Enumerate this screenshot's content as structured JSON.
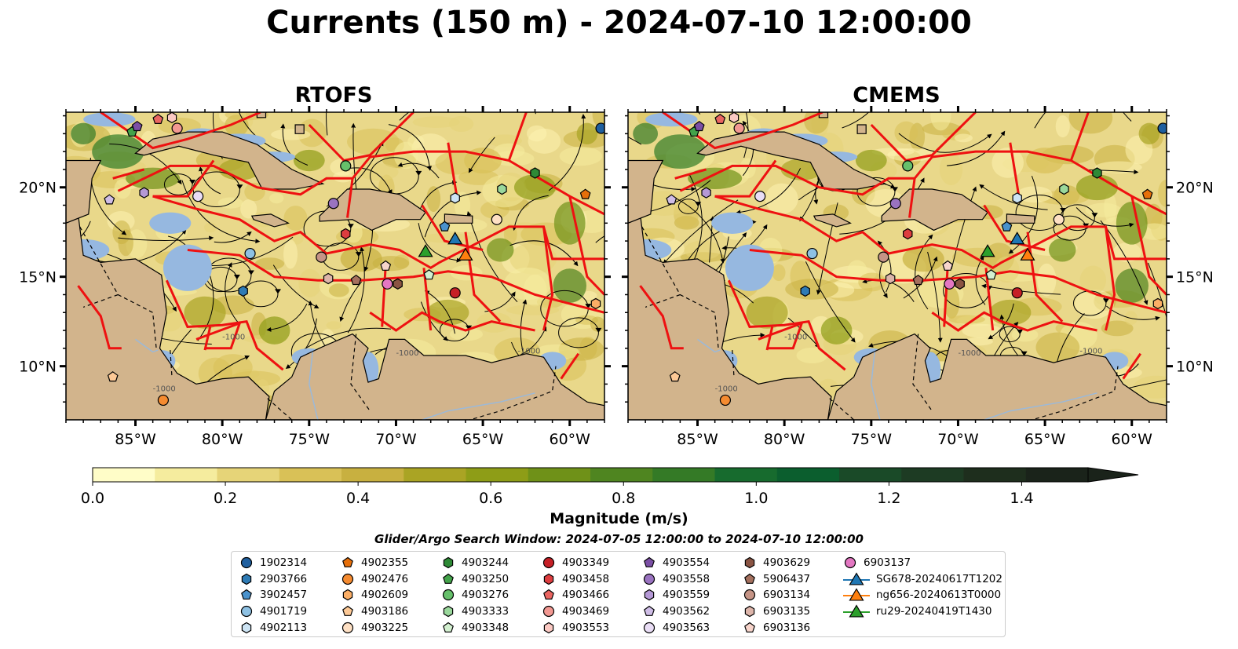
{
  "title": "Currents (150 m) - 2024-07-10 12:00:00",
  "panels": [
    {
      "title": "RTOFS"
    },
    {
      "title": "CMEMS"
    }
  ],
  "map": {
    "lon_range": [
      -89,
      -58
    ],
    "lat_range": [
      7,
      24.2
    ],
    "lon_ticks": [
      "85°W",
      "80°W",
      "75°W",
      "70°W",
      "65°W",
      "60°W"
    ],
    "lat_ticks": [
      "20°N",
      "15°N",
      "10°N"
    ],
    "contour_labels": [
      "-1000",
      "-1000",
      "-1000",
      "-1000"
    ]
  },
  "colorbar": {
    "label": "Magnitude (m/s)",
    "ticks": [
      "0.0",
      "0.2",
      "0.4",
      "0.6",
      "0.8",
      "1.0",
      "1.2",
      "1.4"
    ],
    "range": [
      0,
      1.5
    ],
    "extend": "max",
    "colors": [
      "#fffdc8",
      "#f5ec9e",
      "#e6d478",
      "#d9c157",
      "#c8b040",
      "#aaa424",
      "#8e9d17",
      "#6f9118",
      "#4f8520",
      "#347a26",
      "#176b2e",
      "#0b5e2e",
      "#1a4a28",
      "#1d3b23",
      "#1e2e1d",
      "#1a231a"
    ]
  },
  "search_window": "Glider/Argo Search Window: 2024-07-05 12:00:00 to 2024-07-10 12:00:00",
  "legend": [
    {
      "label": "1902314",
      "marker": "circle",
      "color": "#1f5f9f"
    },
    {
      "label": "2903766",
      "marker": "hexagon",
      "color": "#2e7bb5"
    },
    {
      "label": "3902457",
      "marker": "pentagon",
      "color": "#4a92cc"
    },
    {
      "label": "4901719",
      "marker": "circle",
      "color": "#8ec1e3"
    },
    {
      "label": "4902113",
      "marker": "hexagon",
      "color": "#cde4f4"
    },
    {
      "label": "4902355",
      "marker": "pentagon",
      "color": "#e66f0a"
    },
    {
      "label": "4902476",
      "marker": "circle",
      "color": "#f58b30"
    },
    {
      "label": "4902609",
      "marker": "hexagon",
      "color": "#fbae66"
    },
    {
      "label": "4903186",
      "marker": "pentagon",
      "color": "#fdc996"
    },
    {
      "label": "4903225",
      "marker": "circle",
      "color": "#fee0c4"
    },
    {
      "label": "4903244",
      "marker": "hexagon",
      "color": "#2e8a36"
    },
    {
      "label": "4903250",
      "marker": "pentagon",
      "color": "#43a34a"
    },
    {
      "label": "4903276",
      "marker": "circle",
      "color": "#66c06b"
    },
    {
      "label": "4903333",
      "marker": "hexagon",
      "color": "#9ad89c"
    },
    {
      "label": "4903348",
      "marker": "pentagon",
      "color": "#d3f0d0"
    },
    {
      "label": "4903349",
      "marker": "circle",
      "color": "#c61f26"
    },
    {
      "label": "4903458",
      "marker": "hexagon",
      "color": "#dd3d3f"
    },
    {
      "label": "4903466",
      "marker": "pentagon",
      "color": "#ea6561"
    },
    {
      "label": "4903469",
      "marker": "circle",
      "color": "#f29892"
    },
    {
      "label": "4903553",
      "marker": "hexagon",
      "color": "#fbc9c3"
    },
    {
      "label": "4903554",
      "marker": "pentagon",
      "color": "#7b4fa5"
    },
    {
      "label": "4903558",
      "marker": "circle",
      "color": "#9a73c0"
    },
    {
      "label": "4903559",
      "marker": "hexagon",
      "color": "#b599d6"
    },
    {
      "label": "4903562",
      "marker": "pentagon",
      "color": "#cfbde6"
    },
    {
      "label": "4903563",
      "marker": "circle",
      "color": "#e9ddf5"
    },
    {
      "label": "4903629",
      "marker": "hexagon",
      "color": "#8a5443"
    },
    {
      "label": "5906437",
      "marker": "pentagon",
      "color": "#a4705e"
    },
    {
      "label": "6903134",
      "marker": "circle",
      "color": "#c59486"
    },
    {
      "label": "6903135",
      "marker": "hexagon",
      "color": "#ddb5aa"
    },
    {
      "label": "6903136",
      "marker": "pentagon",
      "color": "#f7d4cb"
    },
    {
      "label": "6903137",
      "marker": "circle",
      "color": "#e377c2"
    },
    {
      "label": "SG678-20240617T1202",
      "marker": "triangle-line",
      "color": "#1f77b4"
    },
    {
      "label": "ng656-20240613T0000",
      "marker": "triangle-line",
      "color": "#ff7f0e"
    },
    {
      "label": "ru29-20240419T1430",
      "marker": "triangle-line",
      "color": "#2ca02c"
    }
  ],
  "platforms": [
    {
      "id": "1902314",
      "lon": -58.2,
      "lat": 23.3
    },
    {
      "id": "4903244",
      "lon": -62.0,
      "lat": 20.8
    },
    {
      "id": "4902355",
      "lon": -59.1,
      "lat": 19.6
    },
    {
      "id": "4903276",
      "lon": -72.9,
      "lat": 21.2
    },
    {
      "id": "4903333",
      "lon": -63.9,
      "lat": 19.9
    },
    {
      "id": "4903250",
      "lon": -85.2,
      "lat": 23.1
    },
    {
      "id": "4903554",
      "lon": -84.9,
      "lat": 23.4
    },
    {
      "id": "4903466",
      "lon": -83.7,
      "lat": 23.8
    },
    {
      "id": "4903553",
      "lon": -82.9,
      "lat": 23.9
    },
    {
      "id": "4903469",
      "lon": -82.6,
      "lat": 23.3
    },
    {
      "id": "4903559",
      "lon": -84.5,
      "lat": 19.7
    },
    {
      "id": "4903562",
      "lon": -86.5,
      "lat": 19.3
    },
    {
      "id": "4903563",
      "lon": -81.4,
      "lat": 19.5
    },
    {
      "id": "4903558",
      "lon": -73.6,
      "lat": 19.1
    },
    {
      "id": "4902113",
      "lon": -66.6,
      "lat": 19.4
    },
    {
      "id": "3902457",
      "lon": -67.2,
      "lat": 17.8
    },
    {
      "id": "4903225",
      "lon": -64.2,
      "lat": 18.2
    },
    {
      "id": "4901719",
      "lon": -78.4,
      "lat": 16.3
    },
    {
      "id": "6903134",
      "lon": -74.3,
      "lat": 16.1
    },
    {
      "id": "4903458",
      "lon": -72.9,
      "lat": 17.4
    },
    {
      "id": "6903135",
      "lon": -73.9,
      "lat": 14.9
    },
    {
      "id": "5906437",
      "lon": -72.3,
      "lat": 14.8
    },
    {
      "id": "6903136",
      "lon": -70.6,
      "lat": 15.6
    },
    {
      "id": "6903137",
      "lon": -70.5,
      "lat": 14.6
    },
    {
      "id": "4903629",
      "lon": -69.9,
      "lat": 14.6
    },
    {
      "id": "4903349",
      "lon": -66.6,
      "lat": 14.1
    },
    {
      "id": "2903766",
      "lon": -78.8,
      "lat": 14.2
    },
    {
      "id": "4903348",
      "lon": -68.1,
      "lat": 15.1
    },
    {
      "id": "4902609",
      "lon": -58.5,
      "lat": 13.5
    },
    {
      "id": "4903186",
      "lon": -86.3,
      "lat": 9.4
    },
    {
      "id": "4902476",
      "lon": -83.4,
      "lat": 8.1
    },
    {
      "id": "SG678-20240617T1202",
      "lon": -66.6,
      "lat": 17.1
    },
    {
      "id": "ng656-20240613T0000",
      "lon": -66.0,
      "lat": 16.2
    },
    {
      "id": "ru29-20240419T1430",
      "lon": -68.3,
      "lat": 16.4
    }
  ]
}
